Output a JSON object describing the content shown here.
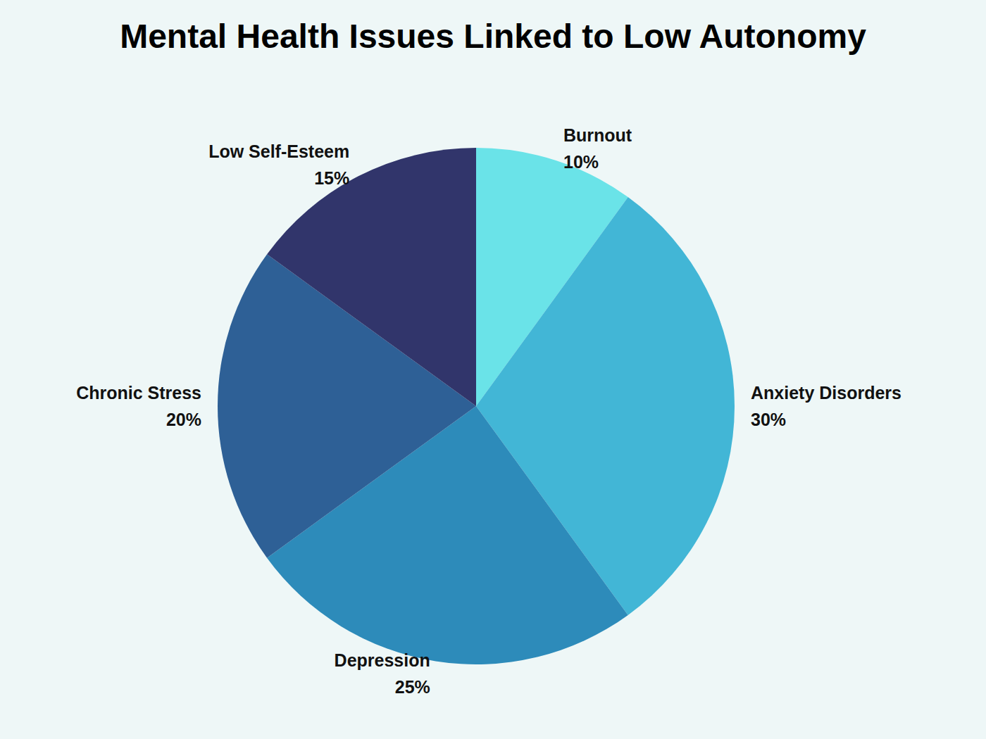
{
  "chart_data": {
    "type": "pie",
    "title": "Mental Health Issues Linked to Low Autonomy",
    "categories": [
      "Burnout",
      "Anxiety Disorders",
      "Depression",
      "Chronic Stress",
      "Low Self-Esteem"
    ],
    "values": [
      10,
      30,
      25,
      20,
      15
    ],
    "value_labels": [
      "10%",
      "30%",
      "25%",
      "20%",
      "15%"
    ],
    "colors": [
      "#6ae3e8",
      "#42b6d6",
      "#2d8bba",
      "#2e6096",
      "#31356b"
    ],
    "data_labels": true
  }
}
